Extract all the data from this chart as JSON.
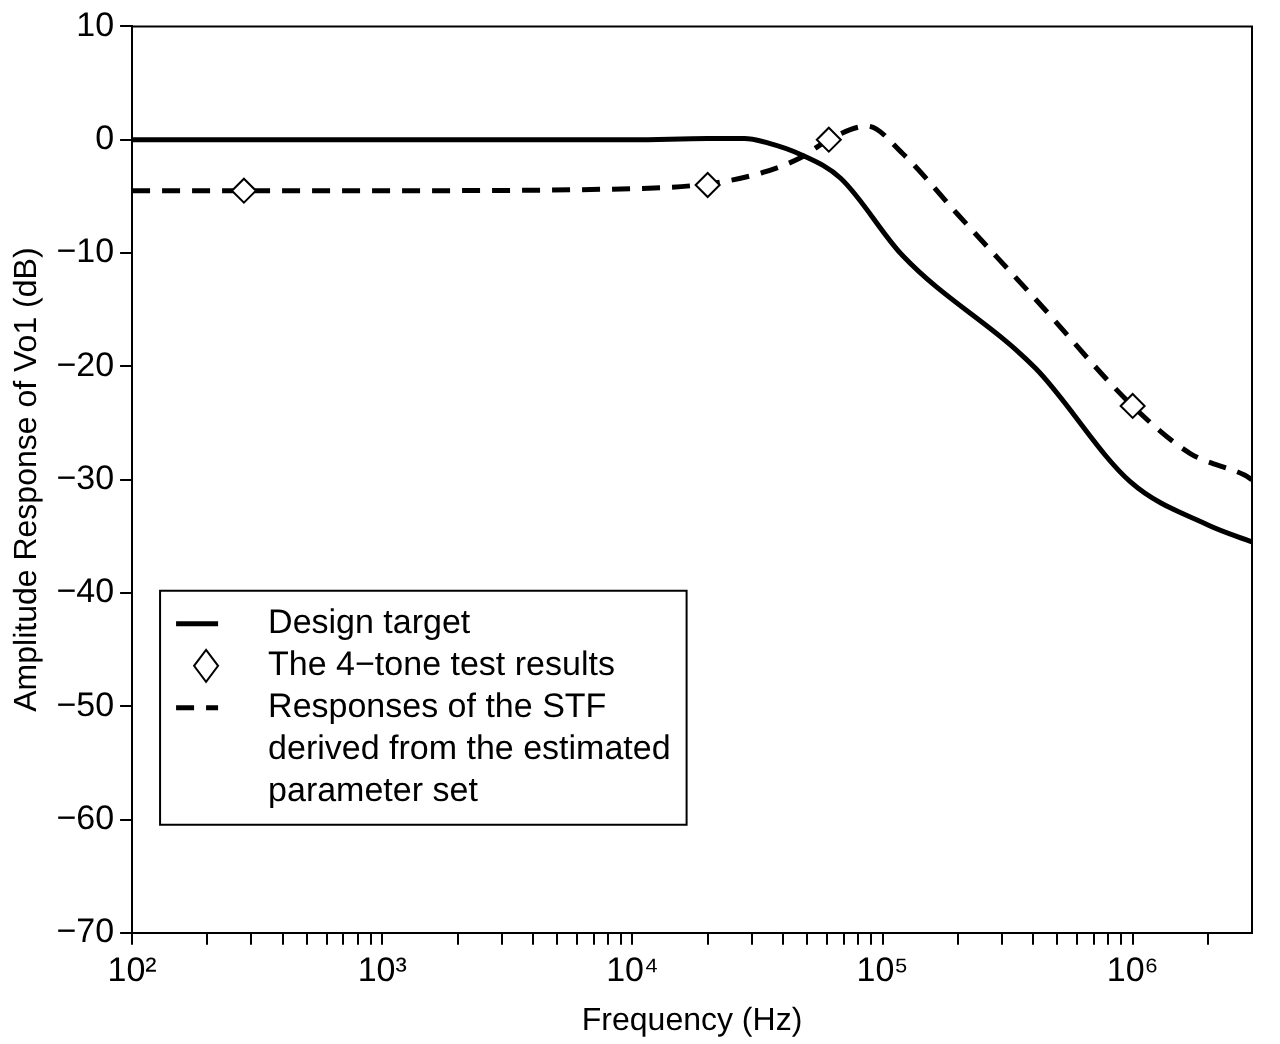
{
  "chart_data": {
    "type": "line",
    "xlabel": "Frequency (Hz)",
    "ylabel": "Amplitude Response of Vo1 (dB)",
    "log": "x",
    "grid": false,
    "legend": "bottom left",
    "xlim": [
      100,
      3000000
    ],
    "xticks": [
      {
        "value": 100,
        "label": "10²"
      },
      {
        "value": 200,
        "label": null
      },
      {
        "value": 300,
        "label": null
      },
      {
        "value": 400,
        "label": null
      },
      {
        "value": 500,
        "label": null
      },
      {
        "value": 600,
        "label": null
      },
      {
        "value": 700,
        "label": null
      },
      {
        "value": 800,
        "label": null
      },
      {
        "value": 900,
        "label": null
      },
      {
        "value": 1000,
        "label": "10³"
      },
      {
        "value": 2000,
        "label": null
      },
      {
        "value": 3000,
        "label": null
      },
      {
        "value": 4000,
        "label": null
      },
      {
        "value": 5000,
        "label": null
      },
      {
        "value": 6000,
        "label": null
      },
      {
        "value": 7000,
        "label": null
      },
      {
        "value": 8000,
        "label": null
      },
      {
        "value": 9000,
        "label": null
      },
      {
        "value": 10000,
        "label": "10⁴"
      },
      {
        "value": 20000,
        "label": null
      },
      {
        "value": 30000,
        "label": null
      },
      {
        "value": 40000,
        "label": null
      },
      {
        "value": 50000,
        "label": null
      },
      {
        "value": 60000,
        "label": null
      },
      {
        "value": 70000,
        "label": null
      },
      {
        "value": 80000,
        "label": null
      },
      {
        "value": 90000,
        "label": null
      },
      {
        "value": 100000,
        "label": "10⁵"
      },
      {
        "value": 200000,
        "label": null
      },
      {
        "value": 300000,
        "label": null
      },
      {
        "value": 400000,
        "label": null
      },
      {
        "value": 500000,
        "label": null
      },
      {
        "value": 600000,
        "label": null
      },
      {
        "value": 700000,
        "label": null
      },
      {
        "value": 800000,
        "label": null
      },
      {
        "value": 900000,
        "label": null
      },
      {
        "value": 1000000,
        "label": "10⁶"
      },
      {
        "value": 2000000,
        "label": null
      }
    ],
    "ylim": [
      -70,
      10
    ],
    "yticks": [
      -70,
      -60,
      -50,
      -40,
      -30,
      -20,
      -10,
      0,
      10
    ],
    "series": [
      {
        "name": "Design target",
        "type": "line",
        "color": "#000000",
        "marker": "none",
        "line_style": "solid",
        "x": [
          100,
          1000,
          10000,
          20000,
          28000,
          35000,
          47000,
          68000,
          120000,
          410000,
          980000,
          2000000,
          3000000
        ],
        "values": [
          0,
          0,
          0,
          0.1,
          0.1,
          -0.3,
          -1.3,
          -3.4,
          -10.2,
          -20.2,
          -30.2,
          -34,
          -35.5
        ]
      },
      {
        "name": "The 4−tone test results",
        "type": "scatter",
        "color": "#000000",
        "marker": "diamond",
        "x": [
          280,
          20000,
          61000,
          1000000
        ],
        "values": [
          -4.5,
          -4,
          0,
          -23.5
        ]
      },
      {
        "name": "Responses of the STF derived from the estimated parameter set",
        "type": "line",
        "color": "#000000",
        "marker": "none",
        "line_style": "dashed",
        "x": [
          100,
          1000,
          11000,
          20000,
          32000,
          47000,
          61000,
          87000,
          120000,
          200000,
          410000,
          1000000,
          1700000,
          2800000,
          3000000
        ],
        "values": [
          -4.5,
          -4.5,
          -4.3,
          -3.9,
          -3,
          -1.6,
          0,
          1.2,
          -1.2,
          -6.6,
          -14.1,
          -23.5,
          -27.7,
          -29.6,
          -30
        ]
      }
    ]
  }
}
